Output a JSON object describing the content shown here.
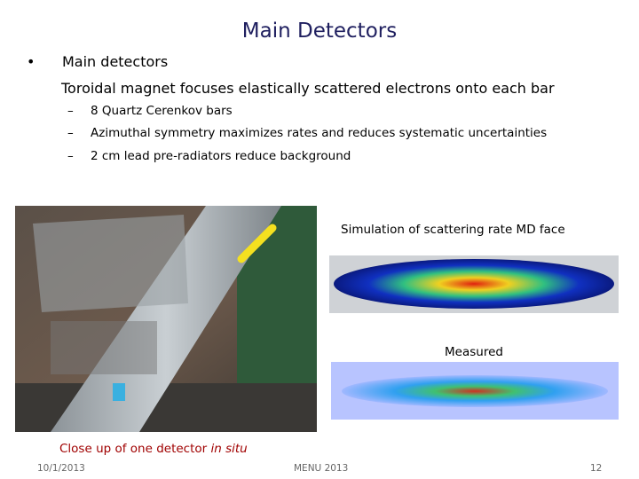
{
  "header": {
    "title": "Main Detectors"
  },
  "body": {
    "bullet": "Main detectors",
    "subtext": "Toroidal magnet focuses elastically scattered electrons onto each bar",
    "items": [
      "8 Quartz Cerenkov bars",
      "Azimuthal symmetry maximizes rates and reduces systematic uncertainties",
      "2 cm lead pre-radiators reduce background"
    ]
  },
  "figures": {
    "simulation_label": "Simulation of scattering rate MD face",
    "measured_label": "Measured",
    "photo_caption": {
      "text": "Close up of one detector",
      "emphasis": "in situ"
    }
  },
  "footer": {
    "date": "10/1/2013",
    "event": "MENU 2013",
    "page": "12"
  }
}
